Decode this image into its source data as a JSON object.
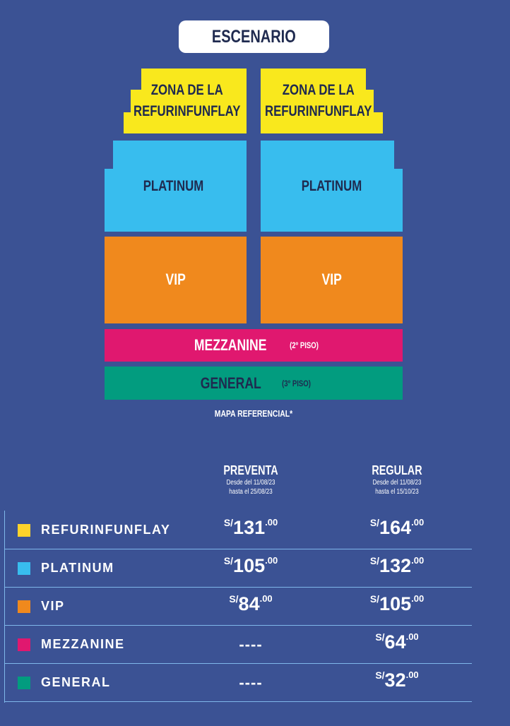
{
  "stage": "ESCENARIO",
  "map": {
    "zones": [
      {
        "line1": "ZONA DE LA",
        "line2": "REFURINFUNFLAY",
        "color": "#f9e81d"
      },
      {
        "label": "PLATINUM",
        "color": "#38bdee"
      },
      {
        "label": "VIP",
        "color": "#f0891d"
      },
      {
        "label": "MEZZANINE",
        "note": "(2º PISO)",
        "color": "#e0186f"
      },
      {
        "label": "GENERAL",
        "note": "(3º PISO)",
        "color": "#029c7f"
      }
    ],
    "note": "MAPA REFERENCIAL*"
  },
  "table": {
    "columns": [
      {
        "title": "PREVENTA",
        "line1": "Desde del 11/08/23",
        "line2": "hasta el 25/08/23"
      },
      {
        "title": "REGULAR",
        "line1": "Desde del 11/08/23",
        "line2": "hasta el 15/10/23"
      }
    ],
    "currency": "S/",
    "rows": [
      {
        "name": "REFURINFUNFLAY",
        "color": "#fdd32b",
        "preventa": "131",
        "regular": "164"
      },
      {
        "name": "PLATINUM",
        "color": "#38bdee",
        "preventa": "105",
        "regular": "132"
      },
      {
        "name": "VIP",
        "color": "#f0891d",
        "preventa": "84",
        "regular": "105"
      },
      {
        "name": "MEZZANINE",
        "color": "#e0186f",
        "preventa": "----",
        "regular": "64"
      },
      {
        "name": "GENERAL",
        "color": "#029c7f",
        "preventa": "----",
        "regular": "32"
      }
    ],
    "decimals": ".00"
  }
}
